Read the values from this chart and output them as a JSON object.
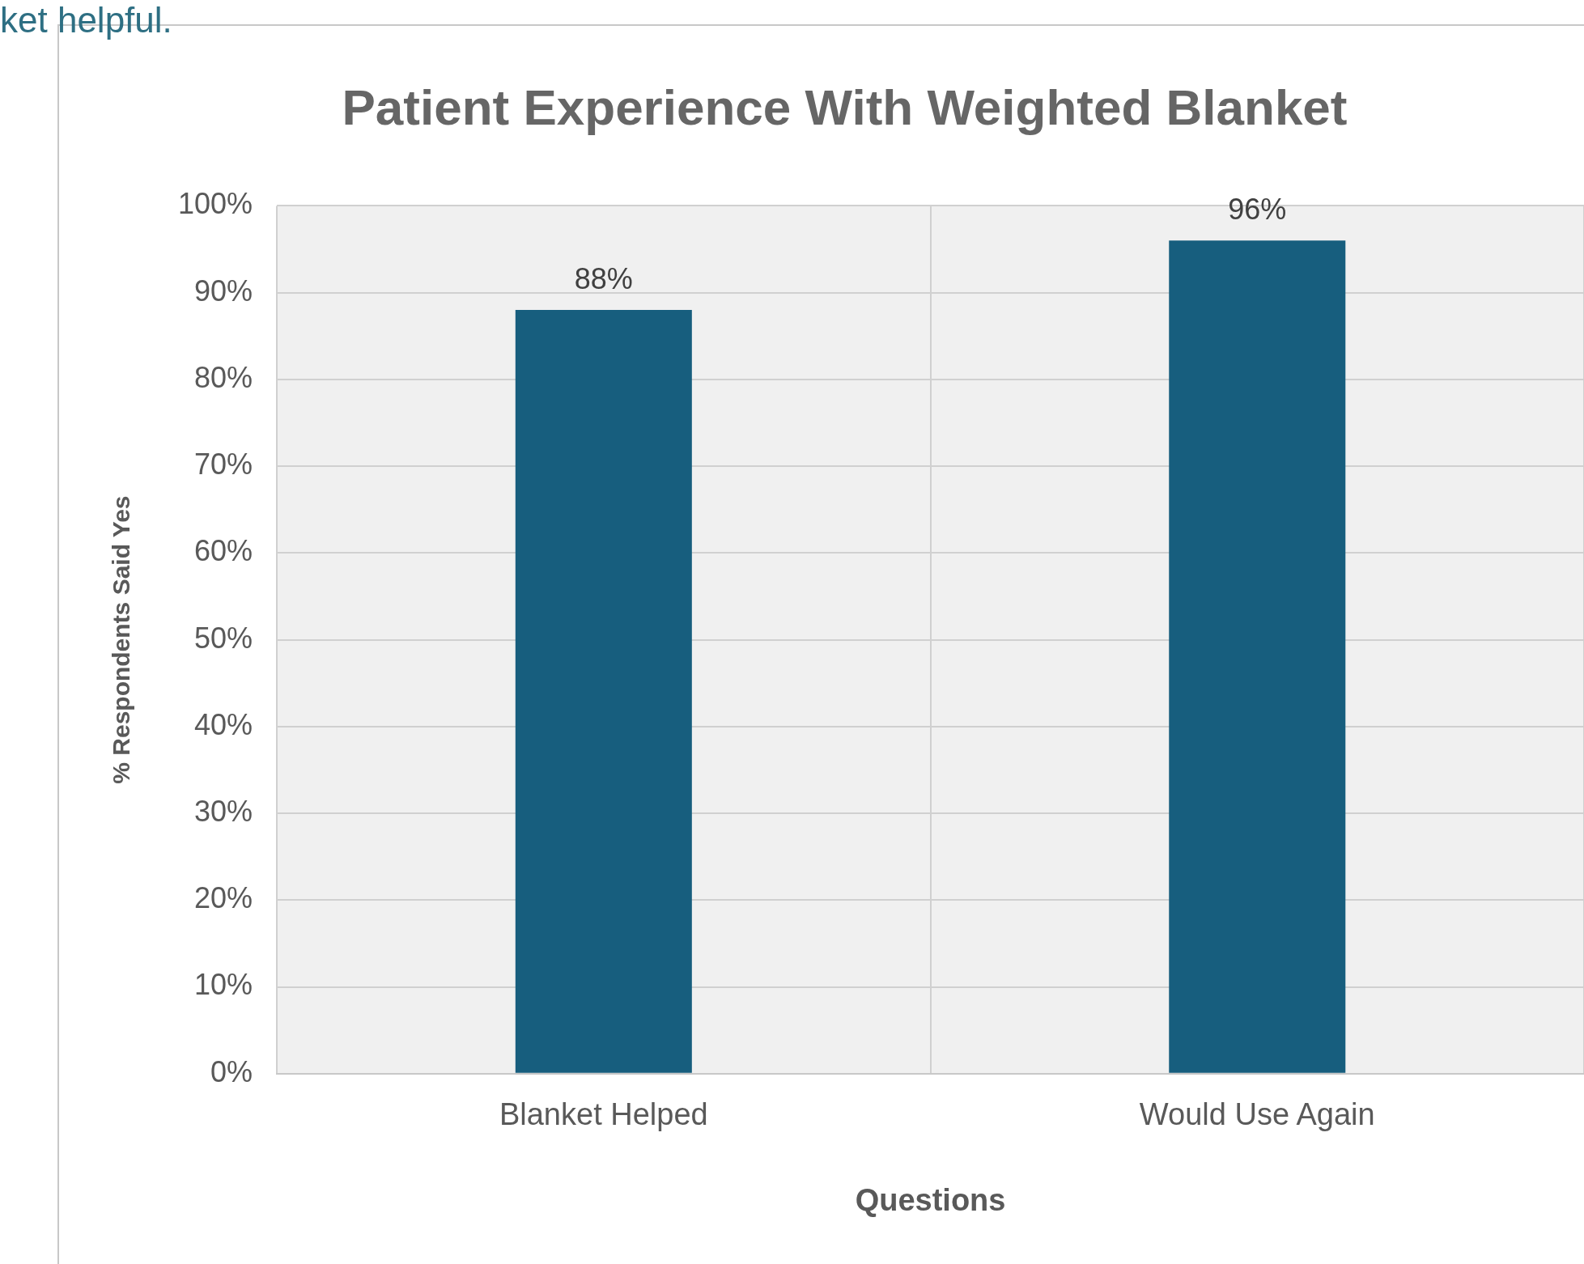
{
  "chart_data": {
    "type": "bar",
    "title": "Patient Experience With Weighted Blanket",
    "xlabel": "Questions",
    "ylabel": "% Respondents Said Yes",
    "categories": [
      "Blanket Helped",
      "Would Use Again"
    ],
    "values": [
      88,
      96
    ],
    "color": "#175e7e",
    "value_labels": [
      "88%",
      "96%"
    ],
    "ylim": [
      0,
      100
    ],
    "yticks": [
      {
        "value": 0,
        "label": "0%"
      },
      {
        "value": 10,
        "label": "10%"
      },
      {
        "value": 20,
        "label": "20%"
      },
      {
        "value": 30,
        "label": "30%"
      },
      {
        "value": 40,
        "label": "40%"
      },
      {
        "value": 50,
        "label": "50%"
      },
      {
        "value": 60,
        "label": "60%"
      },
      {
        "value": 70,
        "label": "70%"
      },
      {
        "value": 80,
        "label": "80%"
      },
      {
        "value": 90,
        "label": "90%"
      },
      {
        "value": 100,
        "label": "100%"
      }
    ],
    "grid": true,
    "annotations": [
      "ket helpful."
    ]
  }
}
